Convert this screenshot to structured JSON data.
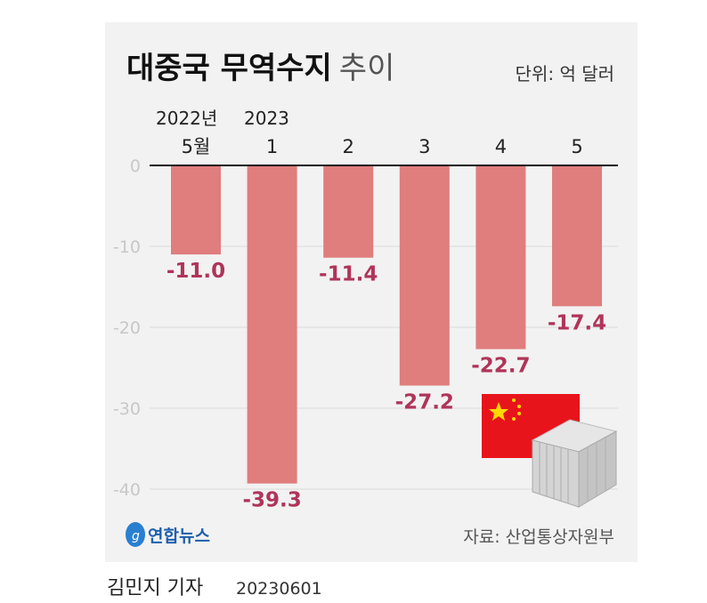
{
  "chart_data": {
    "type": "bar",
    "title": "대중국 무역수지",
    "title_suffix": "추이",
    "unit": "단위: 억 달러",
    "year_labels": [
      "2022년",
      "2023"
    ],
    "categories": [
      "5월",
      "1",
      "2",
      "3",
      "4",
      "5"
    ],
    "values": [
      -11.0,
      -39.3,
      -11.4,
      -27.2,
      -22.7,
      -17.4
    ],
    "value_labels": [
      "-11.0",
      "-39.3",
      "-11.4",
      "-27.2",
      "-22.7",
      "-17.4"
    ],
    "yticks": [
      0,
      -10,
      -20,
      -30,
      -40
    ],
    "ylim": [
      -40,
      0
    ],
    "grid": true,
    "colors": {
      "bar": "#e07d7d",
      "label": "#b0345a",
      "axis_text": "#c8c8c8",
      "panel": "#f2f2f2"
    },
    "source": "자료: 산업통상자원부",
    "logo": "연합뉴스",
    "illustration": [
      "china-flag",
      "shipping-container"
    ]
  },
  "footer": {
    "author": "김민지 기자",
    "date": "20230601"
  }
}
